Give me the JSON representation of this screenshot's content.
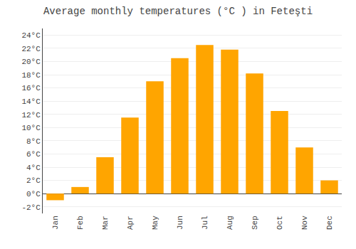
{
  "chart_data": {
    "type": "bar",
    "title": "Average monthly temperatures (°C ) in Feteşti",
    "categories": [
      "Jan",
      "Feb",
      "Mar",
      "Apr",
      "May",
      "Jun",
      "Jul",
      "Aug",
      "Sep",
      "Oct",
      "Nov",
      "Dec"
    ],
    "values": [
      -1.0,
      1.0,
      5.5,
      11.5,
      17.0,
      20.5,
      22.5,
      21.8,
      18.2,
      12.5,
      7.0,
      2.0
    ],
    "color": "#FFA500",
    "ylim": [
      -3,
      25
    ],
    "yticks": [
      {
        "value": -2,
        "label": "-2°C"
      },
      {
        "value": 0,
        "label": "0°C"
      },
      {
        "value": 2,
        "label": "2°C"
      },
      {
        "value": 4,
        "label": "4°C"
      },
      {
        "value": 6,
        "label": "6°C"
      },
      {
        "value": 8,
        "label": "8°C"
      },
      {
        "value": 10,
        "label": "10°C"
      },
      {
        "value": 12,
        "label": "12°C"
      },
      {
        "value": 14,
        "label": "14°C"
      },
      {
        "value": 16,
        "label": "16°C"
      },
      {
        "value": 18,
        "label": "18°C"
      },
      {
        "value": 20,
        "label": "20°C"
      },
      {
        "value": 22,
        "label": "22°C"
      },
      {
        "value": 24,
        "label": "24°C"
      }
    ],
    "grid": true
  }
}
